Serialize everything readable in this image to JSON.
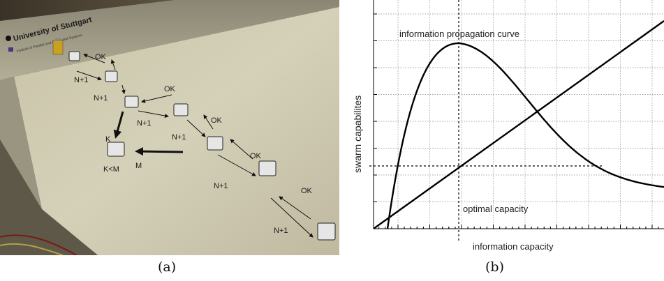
{
  "panel_a": {
    "sign_title": "University of Stuttgart",
    "sign_subtitle": "Institute of Parallel and Distributed Systems",
    "robot_labels": [
      {
        "id": "ok-1",
        "text": "OK"
      },
      {
        "id": "n1-1",
        "text": "N+1"
      },
      {
        "id": "n1-2",
        "text": "N+1"
      },
      {
        "id": "ok-2",
        "text": "OK"
      },
      {
        "id": "n1-3",
        "text": "N+1"
      },
      {
        "id": "ok-3",
        "text": "OK"
      },
      {
        "id": "k",
        "text": "K"
      },
      {
        "id": "n1-4",
        "text": "N+1"
      },
      {
        "id": "m",
        "text": "M"
      },
      {
        "id": "k-lt-m",
        "text": "K<M"
      },
      {
        "id": "ok-4",
        "text": "OK"
      },
      {
        "id": "n1-5",
        "text": "N+1"
      },
      {
        "id": "ok-5",
        "text": "OK"
      },
      {
        "id": "n1-6",
        "text": "N+1"
      }
    ],
    "caption": "(a)"
  },
  "panel_b": {
    "ylabel": "swarm capabilites",
    "xlabel": "information capacity",
    "curve_label": "information propagation curve",
    "optimal_label": "optimal capacity",
    "caption": "(b)"
  },
  "chart_data": {
    "type": "line",
    "title": "",
    "xlabel": "information capacity",
    "ylabel": "swarm capabilites",
    "grid": true,
    "series": [
      {
        "name": "information propagation curve",
        "shape": "rise-peak-decay"
      },
      {
        "name": "",
        "shape": "linear"
      }
    ],
    "annotations": [
      "information propagation curve",
      "optimal capacity"
    ]
  }
}
